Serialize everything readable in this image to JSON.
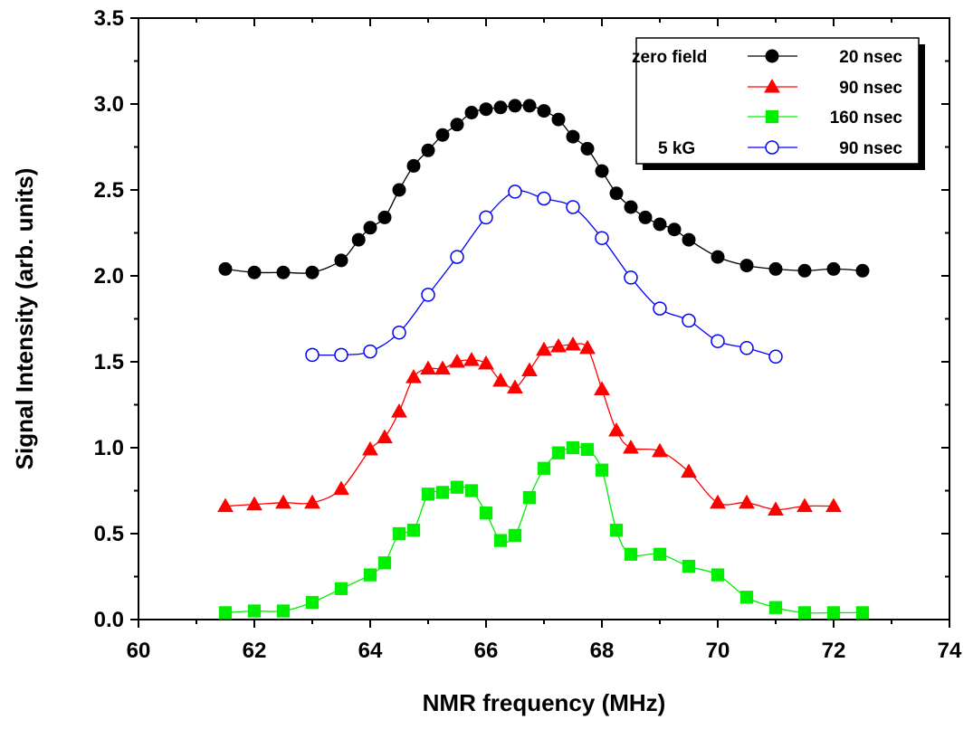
{
  "chart_data": {
    "type": "line",
    "xlabel": "NMR frequency (MHz)",
    "ylabel": "Signal Intensity (arb. units)",
    "xlim": [
      60,
      74
    ],
    "ylim": [
      0.0,
      3.5
    ],
    "xticks": [
      "60",
      "62",
      "64",
      "66",
      "68",
      "70",
      "72",
      "74"
    ],
    "yticks": [
      "0.0",
      "0.5",
      "1.0",
      "1.5",
      "2.0",
      "2.5",
      "3.0",
      "3.5"
    ],
    "grid": false,
    "legend_position": "top-right",
    "legend_groups": [
      {
        "label": "zero field",
        "series": [
          0,
          1,
          2
        ]
      },
      {
        "label": "5 kG",
        "series": [
          3
        ]
      }
    ],
    "series": [
      {
        "name": "20 nsec",
        "color": "#000000",
        "marker": "filled-circle",
        "x": [
          61.5,
          62.0,
          62.5,
          63.0,
          63.5,
          63.8,
          64.0,
          64.25,
          64.5,
          64.75,
          65.0,
          65.25,
          65.5,
          65.75,
          66.0,
          66.25,
          66.5,
          66.75,
          67.0,
          67.25,
          67.5,
          67.75,
          68.0,
          68.25,
          68.5,
          68.75,
          69.0,
          69.25,
          69.5,
          70.0,
          70.5,
          71.0,
          71.5,
          72.0,
          72.5
        ],
        "y": [
          2.04,
          2.02,
          2.02,
          2.02,
          2.09,
          2.21,
          2.28,
          2.34,
          2.5,
          2.64,
          2.73,
          2.82,
          2.88,
          2.95,
          2.97,
          2.98,
          2.99,
          2.99,
          2.96,
          2.91,
          2.81,
          2.74,
          2.61,
          2.48,
          2.4,
          2.34,
          2.3,
          2.27,
          2.21,
          2.11,
          2.06,
          2.04,
          2.03,
          2.04,
          2.03
        ]
      },
      {
        "name": "90 nsec",
        "color": "#ff0000",
        "marker": "filled-triangle",
        "x": [
          61.5,
          62.0,
          62.5,
          63.0,
          63.5,
          64.0,
          64.25,
          64.5,
          64.75,
          65.0,
          65.25,
          65.5,
          65.75,
          66.0,
          66.25,
          66.5,
          66.75,
          67.0,
          67.25,
          67.5,
          67.75,
          68.0,
          68.25,
          68.5,
          69.0,
          69.5,
          70.0,
          70.5,
          71.0,
          71.5,
          72.0
        ],
        "y": [
          0.66,
          0.67,
          0.68,
          0.68,
          0.76,
          0.99,
          1.06,
          1.21,
          1.41,
          1.46,
          1.46,
          1.5,
          1.51,
          1.49,
          1.39,
          1.35,
          1.45,
          1.57,
          1.59,
          1.6,
          1.58,
          1.34,
          1.1,
          1.0,
          0.98,
          0.86,
          0.68,
          0.68,
          0.64,
          0.66,
          0.66
        ]
      },
      {
        "name": "160 nsec",
        "color": "#00ee00",
        "marker": "filled-square",
        "x": [
          61.5,
          62.0,
          62.5,
          63.0,
          63.5,
          64.0,
          64.25,
          64.5,
          64.75,
          65.0,
          65.25,
          65.5,
          65.75,
          66.0,
          66.25,
          66.5,
          66.75,
          67.0,
          67.25,
          67.5,
          67.75,
          68.0,
          68.25,
          68.5,
          69.0,
          69.5,
          70.0,
          70.5,
          71.0,
          71.5,
          72.0,
          72.5
        ],
        "y": [
          0.04,
          0.05,
          0.05,
          0.1,
          0.18,
          0.26,
          0.33,
          0.5,
          0.52,
          0.73,
          0.74,
          0.77,
          0.75,
          0.62,
          0.46,
          0.49,
          0.71,
          0.88,
          0.97,
          1.0,
          0.99,
          0.87,
          0.52,
          0.38,
          0.38,
          0.31,
          0.26,
          0.13,
          0.07,
          0.04,
          0.04,
          0.04
        ]
      },
      {
        "name": "90 nsec",
        "color": "#0000ff",
        "marker": "open-circle",
        "x": [
          63.0,
          63.5,
          64.0,
          64.5,
          65.0,
          65.5,
          66.0,
          66.5,
          67.0,
          67.5,
          68.0,
          68.5,
          69.0,
          69.5,
          70.0,
          70.5,
          71.0
        ],
        "y": [
          1.54,
          1.54,
          1.56,
          1.67,
          1.89,
          2.11,
          2.34,
          2.49,
          2.45,
          2.4,
          2.22,
          1.99,
          1.81,
          1.74,
          1.62,
          1.58,
          1.53
        ]
      }
    ]
  }
}
